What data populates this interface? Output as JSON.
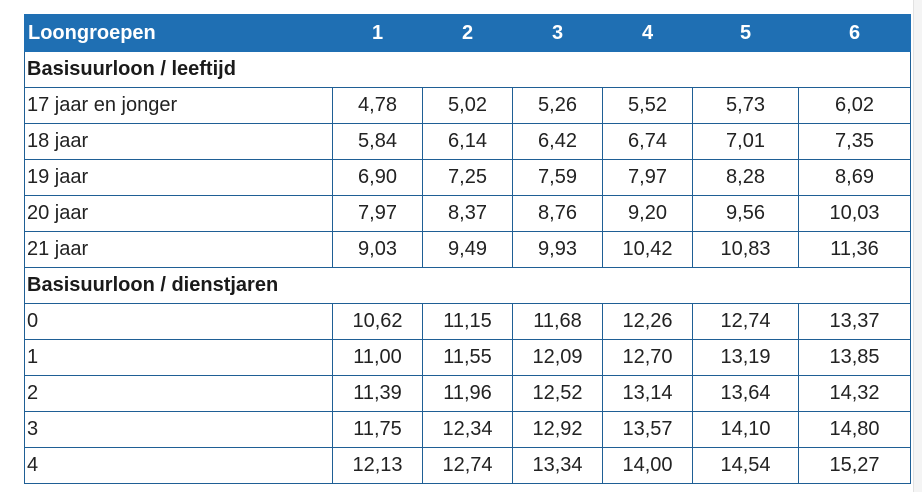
{
  "header": {
    "title": "Loongroepen",
    "groups": [
      "1",
      "2",
      "3",
      "4",
      "5",
      "6"
    ]
  },
  "sections": [
    {
      "title": "Basisuurloon / leeftijd",
      "rows": [
        {
          "label": "17 jaar en jonger",
          "values": [
            "4,78",
            "5,02",
            "5,26",
            "5,52",
            "5,73",
            "6,02"
          ]
        },
        {
          "label": "18 jaar",
          "values": [
            "5,84",
            "6,14",
            "6,42",
            "6,74",
            "7,01",
            "7,35"
          ]
        },
        {
          "label": "19 jaar",
          "values": [
            "6,90",
            "7,25",
            "7,59",
            "7,97",
            "8,28",
            "8,69"
          ]
        },
        {
          "label": "20 jaar",
          "values": [
            "7,97",
            "8,37",
            "8,76",
            "9,20",
            "9,56",
            "10,03"
          ]
        },
        {
          "label": "21 jaar",
          "values": [
            "9,03",
            "9,49",
            "9,93",
            "10,42",
            "10,83",
            "11,36"
          ]
        }
      ]
    },
    {
      "title": "Basisuurloon / dienstjaren",
      "rows": [
        {
          "label": "0",
          "values": [
            "10,62",
            "11,15",
            "11,68",
            "12,26",
            "12,74",
            "13,37"
          ]
        },
        {
          "label": "1",
          "values": [
            "11,00",
            "11,55",
            "12,09",
            "12,70",
            "13,19",
            "13,85"
          ]
        },
        {
          "label": "2",
          "values": [
            "11,39",
            "11,96",
            "12,52",
            "13,14",
            "13,64",
            "14,32"
          ]
        },
        {
          "label": "3",
          "values": [
            "11,75",
            "12,34",
            "12,92",
            "13,57",
            "14,10",
            "14,80"
          ]
        },
        {
          "label": "4",
          "values": [
            "12,13",
            "12,74",
            "13,34",
            "14,00",
            "14,54",
            "15,27"
          ]
        }
      ]
    }
  ],
  "colors": {
    "header_bg": "#1f6fb3",
    "header_text": "#ffffff",
    "border": "#1f5f95"
  }
}
